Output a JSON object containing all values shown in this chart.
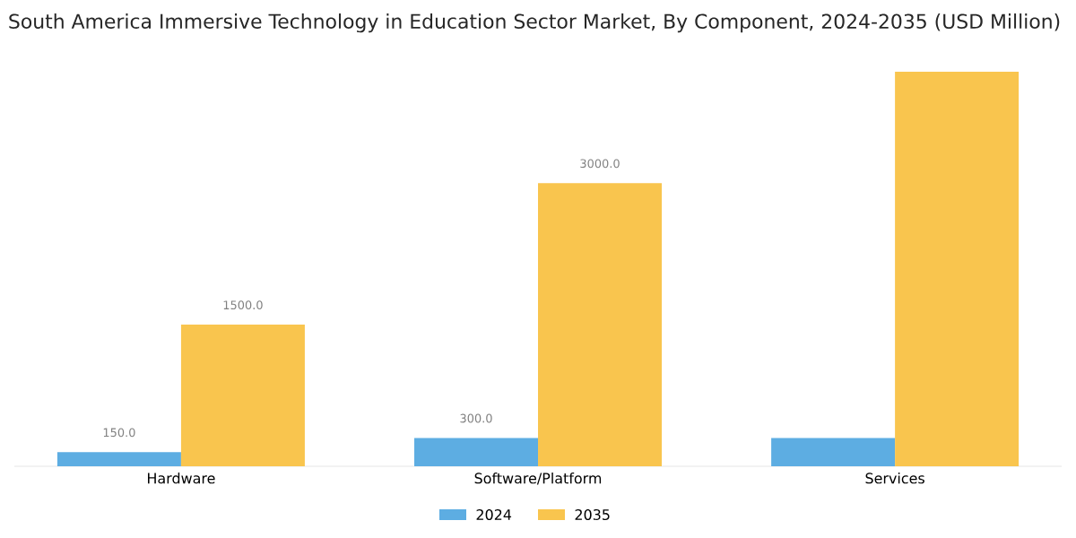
{
  "chart_data": {
    "type": "bar",
    "title": "South America Immersive Technology in Education Sector Market, By Component, 2024-2035 (USD Million)",
    "categories": [
      "Hardware",
      "Software/Platform",
      "Services"
    ],
    "series": [
      {
        "name": "2024",
        "color": "#5dade2",
        "values": [
          150,
          300,
          300
        ],
        "value_labels": [
          "150.0",
          "300.0",
          null
        ]
      },
      {
        "name": "2035",
        "color": "#f9c54e",
        "values": [
          1500,
          3000,
          4180
        ],
        "value_labels": [
          "1500.0",
          "3000.0",
          null
        ]
      }
    ],
    "legend": "bottom",
    "grid": false
  }
}
